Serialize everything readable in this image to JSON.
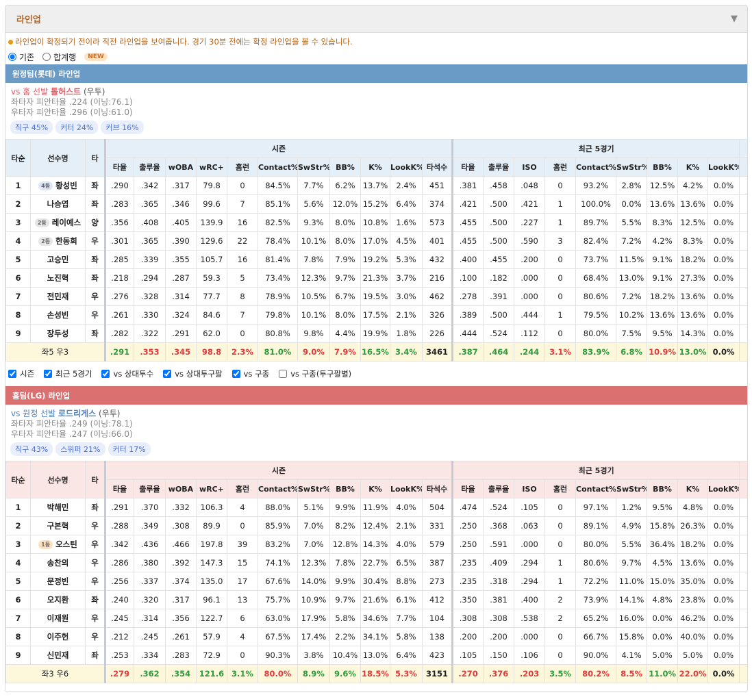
{
  "header": {
    "title": "라인업",
    "toggle": "▼"
  },
  "notice": "라인업이 확정되기 전이라 직전 라인업을 보여줍니다. 경기 30분 전에는 확정 라인업을 볼 수 있습니다.",
  "view_options": [
    {
      "label": "기존",
      "checked": true
    },
    {
      "label": "합계행",
      "checked": false
    }
  ],
  "new_badge": "NEW",
  "column_headers": {
    "order": "타순",
    "name": "선수명",
    "hand": "타",
    "season": "시즌",
    "recent": "최근 5경기",
    "season_cols": [
      "타율",
      "출루율",
      "wOBA",
      "wRC+",
      "홈런",
      "Contact%",
      "SwStr%",
      "BB%",
      "K%",
      "LookK%",
      "타석수"
    ],
    "recent_cols": [
      "타율",
      "출루율",
      "ISO",
      "홈런",
      "Contact%",
      "SwStr%",
      "BB%",
      "K%",
      "LookK%"
    ]
  },
  "filters": [
    {
      "label": "시즌",
      "checked": true
    },
    {
      "label": "최근 5경기",
      "checked": true
    },
    {
      "label": "vs 상대투수",
      "checked": true
    },
    {
      "label": "vs 상대투구팔",
      "checked": true
    },
    {
      "label": "vs 구종",
      "checked": true
    },
    {
      "label": "vs 구종(투구팔별)",
      "checked": false
    }
  ],
  "teams": [
    {
      "title": "원정팀(롯데) 라인업",
      "bar_color": "#6a9bc7",
      "head_bg": "#e5eff8",
      "pitcher_color": "#e0606a",
      "pitcher": {
        "prefix": "vs 홈 선발",
        "name": "톨허스트",
        "hand": "(우투)"
      },
      "splits": [
        "좌타자 피안타율 .224 (이닝:76.1)",
        "우타자 피안타율 .296 (이닝:61.0)"
      ],
      "pitch_mix": [
        "직구 45%",
        "커터 24%",
        "커브 16%"
      ],
      "rows": [
        {
          "order": 1,
          "badge": "4등",
          "badge_color": "#dce6f7",
          "name": "황성빈",
          "hand": "좌",
          "season": [
            ".290",
            ".342",
            ".317",
            "79.8",
            "0",
            "84.5%",
            "7.7%",
            "6.2%",
            "13.7%",
            "2.4%",
            "451"
          ],
          "recent": [
            ".381",
            ".458",
            ".048",
            "0",
            "93.2%",
            "2.8%",
            "12.5%",
            "4.2%",
            "0.0%"
          ]
        },
        {
          "order": 2,
          "name": "나승엽",
          "hand": "좌",
          "season": [
            ".283",
            ".365",
            ".346",
            "99.6",
            "7",
            "85.1%",
            "5.6%",
            "12.0%",
            "15.2%",
            "6.4%",
            "374"
          ],
          "recent": [
            ".421",
            ".500",
            ".421",
            "1",
            "100.0%",
            "0.0%",
            "13.6%",
            "13.6%",
            "0.0%"
          ]
        },
        {
          "order": 3,
          "badge": "2등",
          "badge_color": "#e6e6e6",
          "name": "레이예스",
          "hand": "양",
          "season": [
            ".356",
            ".408",
            ".405",
            "139.9",
            "16",
            "82.5%",
            "9.3%",
            "8.0%",
            "10.8%",
            "1.6%",
            "573"
          ],
          "recent": [
            ".455",
            ".500",
            ".227",
            "1",
            "89.7%",
            "5.5%",
            "8.3%",
            "12.5%",
            "0.0%"
          ]
        },
        {
          "order": 4,
          "badge": "2등",
          "badge_color": "#e6e6e6",
          "name": "한동희",
          "hand": "우",
          "season": [
            ".301",
            ".365",
            ".390",
            "129.6",
            "22",
            "78.4%",
            "10.1%",
            "8.0%",
            "17.0%",
            "4.5%",
            "401"
          ],
          "recent": [
            ".455",
            ".500",
            ".590",
            "3",
            "82.4%",
            "7.2%",
            "4.2%",
            "8.3%",
            "0.0%"
          ]
        },
        {
          "order": 5,
          "name": "고승민",
          "hand": "좌",
          "season": [
            ".285",
            ".339",
            ".355",
            "105.7",
            "16",
            "81.4%",
            "7.8%",
            "7.9%",
            "19.2%",
            "5.3%",
            "432"
          ],
          "recent": [
            ".400",
            ".455",
            ".200",
            "0",
            "73.7%",
            "11.5%",
            "9.1%",
            "18.2%",
            "0.0%"
          ]
        },
        {
          "order": 6,
          "name": "노진혁",
          "hand": "좌",
          "season": [
            ".218",
            ".294",
            ".287",
            "59.3",
            "5",
            "73.4%",
            "12.3%",
            "9.7%",
            "21.3%",
            "3.7%",
            "216"
          ],
          "recent": [
            ".100",
            ".182",
            ".000",
            "0",
            "68.4%",
            "13.0%",
            "9.1%",
            "27.3%",
            "0.0%"
          ]
        },
        {
          "order": 7,
          "name": "전민재",
          "hand": "우",
          "season": [
            ".276",
            ".328",
            ".314",
            "77.7",
            "8",
            "78.9%",
            "10.5%",
            "6.7%",
            "19.5%",
            "3.0%",
            "462"
          ],
          "recent": [
            ".278",
            ".391",
            ".000",
            "0",
            "80.6%",
            "7.2%",
            "18.2%",
            "13.6%",
            "0.0%"
          ]
        },
        {
          "order": 8,
          "name": "손성빈",
          "hand": "우",
          "season": [
            ".261",
            ".330",
            ".324",
            "84.6",
            "7",
            "79.8%",
            "10.1%",
            "8.0%",
            "17.5%",
            "2.1%",
            "326"
          ],
          "recent": [
            ".389",
            ".500",
            ".444",
            "1",
            "79.5%",
            "10.2%",
            "13.6%",
            "13.6%",
            "0.0%"
          ]
        },
        {
          "order": 9,
          "name": "장두성",
          "hand": "좌",
          "season": [
            ".282",
            ".322",
            ".291",
            "62.0",
            "0",
            "80.8%",
            "9.8%",
            "4.4%",
            "19.9%",
            "1.8%",
            "226"
          ],
          "recent": [
            ".444",
            ".524",
            ".112",
            "0",
            "80.0%",
            "7.5%",
            "9.5%",
            "14.3%",
            "0.0%"
          ]
        }
      ],
      "total": {
        "label": "좌5 우3",
        "season": [
          ".291",
          ".353",
          ".345",
          "98.8",
          "2.3%",
          "81.0%",
          "9.0%",
          "7.9%",
          "16.5%",
          "3.4%",
          "3461"
        ],
        "season_colors": [
          "#2e9a3c",
          "#e23b3b",
          "#e23b3b",
          "#e23b3b",
          "#e23b3b",
          "#2e9a3c",
          "#e23b3b",
          "#e23b3b",
          "#2e9a3c",
          "#2e9a3c",
          "#222"
        ],
        "recent": [
          ".387",
          ".464",
          ".244",
          "3.1%",
          "83.9%",
          "6.8%",
          "10.9%",
          "13.0%",
          "0.0%"
        ],
        "recent_colors": [
          "#2e9a3c",
          "#2e9a3c",
          "#2e9a3c",
          "#e23b3b",
          "#2e9a3c",
          "#2e9a3c",
          "#e23b3b",
          "#2e9a3c",
          "#222"
        ]
      }
    },
    {
      "title": "홈팀(LG) 라인업",
      "bar_color": "#db7070",
      "head_bg": "#fbe6e6",
      "pitcher_color": "#4a7fc1",
      "pitcher": {
        "prefix": "vs 원정 선발",
        "name": "로드리게스",
        "hand": "(우투)"
      },
      "splits": [
        "좌타자 피안타율 .249 (이닝:78.1)",
        "우타자 피안타율 .247 (이닝:66.0)"
      ],
      "pitch_mix": [
        "직구 43%",
        "스위퍼 21%",
        "커터 17%"
      ],
      "rows": [
        {
          "order": 1,
          "name": "박해민",
          "hand": "좌",
          "season": [
            ".291",
            ".370",
            ".332",
            "106.3",
            "4",
            "88.0%",
            "5.1%",
            "9.9%",
            "11.9%",
            "4.0%",
            "504"
          ],
          "recent": [
            ".474",
            ".524",
            ".105",
            "0",
            "97.1%",
            "1.2%",
            "9.5%",
            "4.8%",
            "0.0%"
          ]
        },
        {
          "order": 2,
          "name": "구본혁",
          "hand": "우",
          "season": [
            ".288",
            ".349",
            ".308",
            "89.9",
            "0",
            "85.9%",
            "7.0%",
            "8.2%",
            "12.4%",
            "2.1%",
            "331"
          ],
          "recent": [
            ".250",
            ".368",
            ".063",
            "0",
            "89.1%",
            "4.9%",
            "15.8%",
            "26.3%",
            "0.0%"
          ]
        },
        {
          "order": 3,
          "badge": "1등",
          "badge_color": "#fde1bf",
          "name": "오스틴",
          "hand": "우",
          "season": [
            ".342",
            ".436",
            ".466",
            "197.8",
            "39",
            "83.2%",
            "7.0%",
            "12.8%",
            "14.3%",
            "4.0%",
            "579"
          ],
          "recent": [
            ".250",
            ".591",
            ".000",
            "0",
            "80.0%",
            "5.5%",
            "36.4%",
            "18.2%",
            "0.0%"
          ]
        },
        {
          "order": 4,
          "name": "송찬의",
          "hand": "우",
          "season": [
            ".286",
            ".380",
            ".392",
            "147.3",
            "15",
            "74.1%",
            "12.3%",
            "7.8%",
            "22.7%",
            "6.5%",
            "387"
          ],
          "recent": [
            ".235",
            ".409",
            ".294",
            "1",
            "80.6%",
            "9.7%",
            "4.5%",
            "13.6%",
            "0.0%"
          ]
        },
        {
          "order": 5,
          "name": "문정빈",
          "hand": "우",
          "season": [
            ".256",
            ".337",
            ".374",
            "135.0",
            "17",
            "67.6%",
            "14.0%",
            "9.9%",
            "30.4%",
            "8.8%",
            "273"
          ],
          "recent": [
            ".235",
            ".318",
            ".294",
            "1",
            "72.2%",
            "11.0%",
            "15.0%",
            "35.0%",
            "0.0%"
          ]
        },
        {
          "order": 6,
          "name": "오지환",
          "hand": "좌",
          "season": [
            ".240",
            ".320",
            ".317",
            "96.1",
            "13",
            "75.7%",
            "10.9%",
            "9.7%",
            "21.6%",
            "6.1%",
            "412"
          ],
          "recent": [
            ".350",
            ".381",
            ".400",
            "2",
            "73.9%",
            "14.1%",
            "4.8%",
            "23.8%",
            "0.0%"
          ]
        },
        {
          "order": 7,
          "name": "이재원",
          "hand": "우",
          "season": [
            ".245",
            ".314",
            ".356",
            "122.7",
            "6",
            "63.0%",
            "17.9%",
            "5.8%",
            "34.6%",
            "7.7%",
            "104"
          ],
          "recent": [
            ".308",
            ".308",
            ".538",
            "2",
            "65.2%",
            "16.0%",
            "0.0%",
            "46.2%",
            "0.0%"
          ]
        },
        {
          "order": 8,
          "name": "이주헌",
          "hand": "우",
          "season": [
            ".212",
            ".245",
            ".261",
            "57.9",
            "4",
            "67.5%",
            "17.4%",
            "2.2%",
            "34.1%",
            "5.8%",
            "138"
          ],
          "recent": [
            ".200",
            ".200",
            ".000",
            "0",
            "66.7%",
            "15.8%",
            "0.0%",
            "40.0%",
            "0.0%"
          ]
        },
        {
          "order": 9,
          "name": "신민재",
          "hand": "좌",
          "season": [
            ".253",
            ".334",
            ".283",
            "72.9",
            "0",
            "90.3%",
            "3.8%",
            "10.4%",
            "13.0%",
            "6.4%",
            "423"
          ],
          "recent": [
            ".105",
            ".150",
            ".106",
            "0",
            "90.0%",
            "4.1%",
            "5.0%",
            "5.0%",
            "0.0%"
          ]
        }
      ],
      "total": {
        "label": "좌3 우6",
        "season": [
          ".279",
          ".362",
          ".354",
          "121.6",
          "3.1%",
          "80.0%",
          "8.9%",
          "9.6%",
          "18.5%",
          "5.3%",
          "3151"
        ],
        "season_colors": [
          "#e23b3b",
          "#2e9a3c",
          "#2e9a3c",
          "#2e9a3c",
          "#2e9a3c",
          "#e23b3b",
          "#2e9a3c",
          "#2e9a3c",
          "#e23b3b",
          "#e23b3b",
          "#222"
        ],
        "recent": [
          ".270",
          ".376",
          ".203",
          "3.5%",
          "80.2%",
          "8.5%",
          "11.0%",
          "22.0%",
          "0.0%"
        ],
        "recent_colors": [
          "#e23b3b",
          "#e23b3b",
          "#e23b3b",
          "#2e9a3c",
          "#e23b3b",
          "#e23b3b",
          "#2e9a3c",
          "#e23b3b",
          "#222"
        ]
      }
    }
  ]
}
